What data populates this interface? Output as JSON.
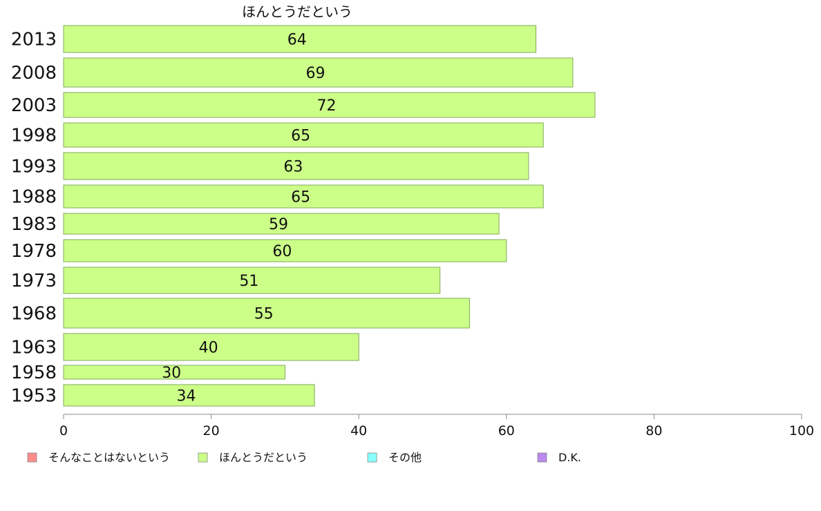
{
  "chart_data": {
    "type": "bar",
    "orientation": "horizontal",
    "title": "ほんとうだという",
    "categories": [
      "2013",
      "2008",
      "2003",
      "1998",
      "1993",
      "1988",
      "1983",
      "1978",
      "1973",
      "1968",
      "1963",
      "1958",
      "1953"
    ],
    "series": [
      {
        "name": "ほんとうだという",
        "values": [
          64,
          69,
          72,
          65,
          63,
          65,
          59,
          60,
          51,
          55,
          40,
          30,
          34
        ]
      }
    ],
    "xlim": [
      0,
      100
    ],
    "xticks": [
      0,
      20,
      40,
      60,
      80,
      100
    ],
    "grid": false,
    "legend_position": "bottom",
    "legend": [
      {
        "label": "そんなことはないという",
        "color": "#ff8c8c"
      },
      {
        "label": "ほんとうだという",
        "color": "#ccff88"
      },
      {
        "label": "その他",
        "color": "#88ffff"
      },
      {
        "label": "D.K.",
        "color": "#bb88ee"
      }
    ]
  },
  "colors": {
    "bar_fill": "#ccff88",
    "bar_stroke": "#7fa85a",
    "axis": "#888888",
    "text": "#111111"
  }
}
